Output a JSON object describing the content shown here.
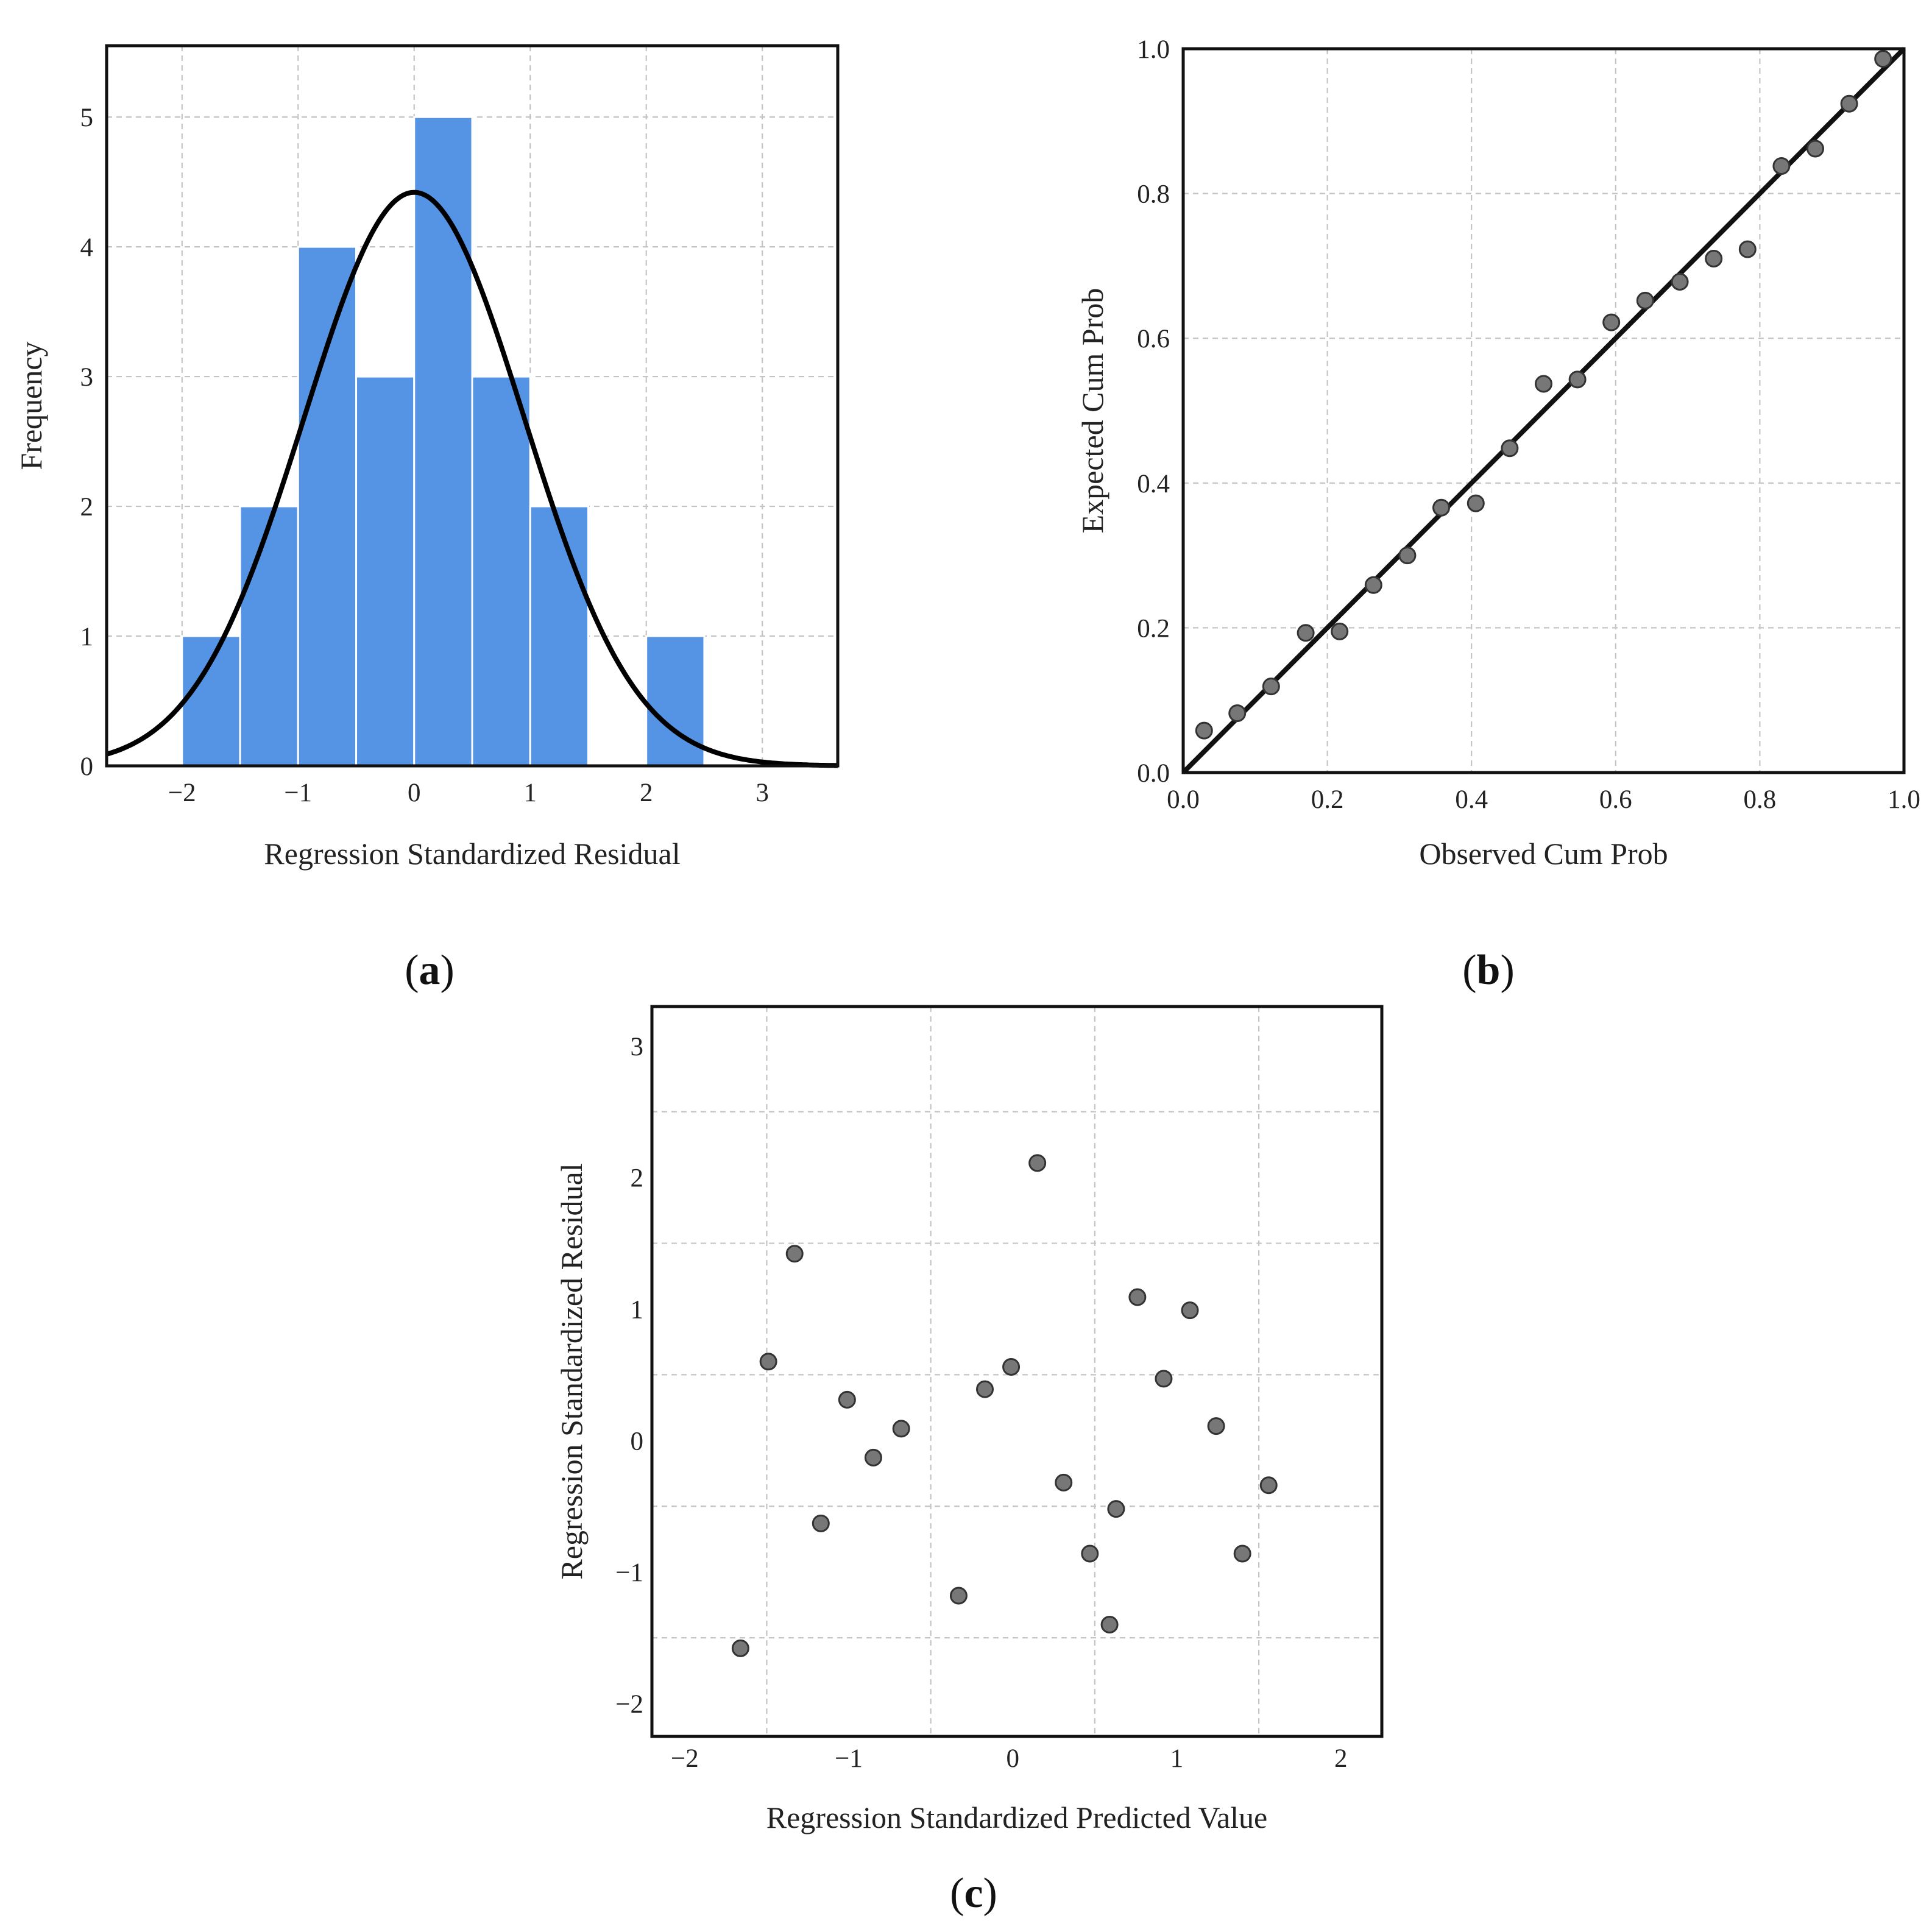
{
  "chart_data": [
    {
      "id": "a",
      "panel_label": "a",
      "type": "bar",
      "subtype": "histogram",
      "xlabel": "Regression Standardized Residual",
      "ylabel": "Frequency",
      "xlim": [
        -2.65,
        3.65
      ],
      "ylim": [
        0,
        5.55
      ],
      "xticks": [
        -2,
        -1,
        0,
        1,
        2,
        3
      ],
      "xtick_labels": [
        "−2",
        "−1",
        "0",
        "1",
        "2",
        "3"
      ],
      "yticks": [
        0,
        1,
        2,
        3,
        4,
        5
      ],
      "ytick_labels": [
        "0",
        "1",
        "2",
        "3",
        "4",
        "5"
      ],
      "grid": true,
      "bins": [
        {
          "start": -2.0,
          "end": -1.5,
          "count": 1
        },
        {
          "start": -1.5,
          "end": -1.0,
          "count": 2
        },
        {
          "start": -1.0,
          "end": -0.5,
          "count": 4
        },
        {
          "start": -0.5,
          "end": 0.0,
          "count": 3
        },
        {
          "start": 0.0,
          "end": 0.5,
          "count": 5
        },
        {
          "start": 0.5,
          "end": 1.0,
          "count": 3
        },
        {
          "start": 1.0,
          "end": 1.5,
          "count": 2
        },
        {
          "start": 1.5,
          "end": 2.0,
          "count": 0
        },
        {
          "start": 2.0,
          "end": 2.5,
          "count": 1
        }
      ],
      "normal_curve": {
        "mean": 0.0,
        "std_dev": 0.949,
        "peak": 4.42
      }
    },
    {
      "id": "b",
      "panel_label": "b",
      "type": "scatter",
      "subtype": "normal P-P plot",
      "xlabel": "Observed Cum Prob",
      "ylabel": "Expected Cum Prob",
      "xlim": [
        0,
        1
      ],
      "ylim": [
        0,
        1
      ],
      "xticks": [
        0,
        0.2,
        0.4,
        0.6,
        0.8,
        1.0
      ],
      "xtick_labels": [
        "0.0",
        "0.2",
        "0.4",
        "0.6",
        "0.8",
        "1.0"
      ],
      "yticks": [
        0,
        0.2,
        0.4,
        0.6,
        0.8,
        1.0
      ],
      "ytick_labels": [
        "0.0",
        "0.2",
        "0.4",
        "0.6",
        "0.8",
        "1.0"
      ],
      "grid": true,
      "reference_line": [
        [
          0,
          0
        ],
        [
          1,
          1
        ]
      ],
      "points": [
        [
          0.029,
          0.058
        ],
        [
          0.075,
          0.082
        ],
        [
          0.122,
          0.119
        ],
        [
          0.17,
          0.193
        ],
        [
          0.217,
          0.195
        ],
        [
          0.264,
          0.259
        ],
        [
          0.311,
          0.3
        ],
        [
          0.358,
          0.366
        ],
        [
          0.406,
          0.372
        ],
        [
          0.453,
          0.448
        ],
        [
          0.5,
          0.537
        ],
        [
          0.547,
          0.543
        ],
        [
          0.594,
          0.622
        ],
        [
          0.641,
          0.652
        ],
        [
          0.689,
          0.678
        ],
        [
          0.736,
          0.71
        ],
        [
          0.783,
          0.723
        ],
        [
          0.83,
          0.838
        ],
        [
          0.877,
          0.862
        ],
        [
          0.924,
          0.924
        ],
        [
          0.971,
          0.986
        ]
      ]
    },
    {
      "id": "c",
      "panel_label": "c",
      "type": "scatter",
      "xlabel": "Regression Standardized Predicted Value",
      "ylabel": "Regression Standardized Residual",
      "xlim": [
        -2.2,
        2.25
      ],
      "ylim": [
        -2.25,
        3.3
      ],
      "xticks": [
        -2,
        -1,
        0,
        1,
        2
      ],
      "xtick_labels": [
        "−2",
        "−1",
        "0",
        "1",
        "2"
      ],
      "yticks": [
        -2,
        -1,
        0,
        1,
        2,
        3
      ],
      "ytick_labels": [
        "−2",
        "−1",
        "0",
        "1",
        "2",
        "3"
      ],
      "grid": true,
      "points": [
        [
          -1.66,
          -1.58
        ],
        [
          -1.49,
          0.6
        ],
        [
          -1.33,
          1.42
        ],
        [
          -1.17,
          -0.63
        ],
        [
          -1.01,
          0.31
        ],
        [
          -0.85,
          -0.13
        ],
        [
          -0.68,
          0.09
        ],
        [
          -0.33,
          -1.18
        ],
        [
          -0.17,
          0.39
        ],
        [
          -0.01,
          0.56
        ],
        [
          0.15,
          2.11
        ],
        [
          0.31,
          -0.32
        ],
        [
          0.47,
          -0.86
        ],
        [
          0.59,
          -1.4
        ],
        [
          0.63,
          -0.52
        ],
        [
          0.76,
          1.09
        ],
        [
          0.92,
          0.47
        ],
        [
          1.08,
          0.99
        ],
        [
          1.24,
          0.11
        ],
        [
          1.4,
          -0.86
        ],
        [
          1.56,
          -0.34
        ]
      ]
    }
  ]
}
